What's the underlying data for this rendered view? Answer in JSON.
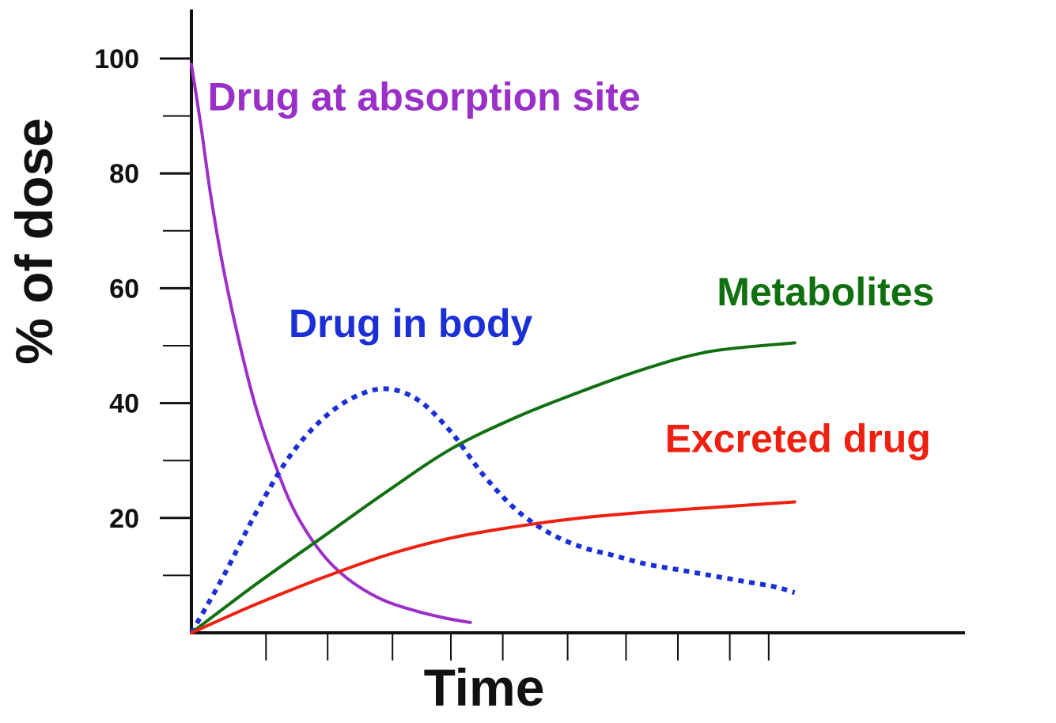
{
  "chart_data": {
    "type": "line",
    "xlabel": "Time",
    "ylabel": "% of dose",
    "xlim": [
      0,
      12
    ],
    "ylim": [
      0,
      100
    ],
    "y_ticks": [
      0,
      10,
      20,
      30,
      40,
      50,
      60,
      70,
      80,
      90,
      100
    ],
    "y_tick_labels": [
      {
        "value": 20,
        "label": "20"
      },
      {
        "value": 40,
        "label": "40"
      },
      {
        "value": 60,
        "label": "60"
      },
      {
        "value": 80,
        "label": "80"
      },
      {
        "value": 100,
        "label": "100"
      }
    ],
    "x_ticks": [
      1.15,
      2.1,
      3.1,
      4.0,
      4.8,
      5.8,
      6.7,
      7.5,
      8.3,
      8.9
    ],
    "grid": false,
    "legend": "labels placed next to each curve",
    "series": [
      {
        "name": "Drug at absorption site",
        "color": "#9b30c8",
        "style": "solid",
        "label_anchor": {
          "x": 0.25,
          "y": 91
        },
        "x": [
          0,
          0.15,
          0.3,
          0.5,
          0.75,
          1.0,
          1.3,
          1.6,
          2.0,
          2.4,
          2.9,
          3.4,
          3.9,
          4.3
        ],
        "y": [
          99,
          88,
          76,
          63,
          50,
          39,
          29,
          21,
          14,
          9.5,
          6,
          4,
          2.6,
          1.8
        ]
      },
      {
        "name": "Drug in body",
        "color": "#1a2fd6",
        "style": "dotted",
        "label_anchor": {
          "x": 1.5,
          "y": 51.5
        },
        "x": [
          0,
          0.5,
          1.0,
          1.5,
          2.0,
          2.5,
          3.0,
          3.5,
          4.0,
          4.5,
          5.0,
          5.5,
          6.0,
          6.5,
          7.0,
          7.5,
          8.0,
          8.5,
          9.0,
          9.3
        ],
        "y": [
          0,
          10,
          21,
          30.5,
          37,
          41,
          42.5,
          40.5,
          35,
          27.5,
          21.5,
          17.5,
          15,
          13.5,
          12,
          11,
          10,
          9,
          8,
          7
        ]
      },
      {
        "name": "Metabolites",
        "color": "#107010",
        "style": "solid",
        "label_anchor": {
          "x": 8.1,
          "y": 57
        },
        "x": [
          0,
          1.0,
          2.0,
          3.0,
          4.0,
          5.0,
          6.0,
          7.0,
          8.0,
          9.3
        ],
        "y": [
          0,
          8.5,
          16.5,
          24.5,
          32,
          37.5,
          42,
          46,
          49,
          50.5
        ]
      },
      {
        "name": "Excreted drug",
        "color": "#ee2010",
        "style": "solid",
        "label_anchor": {
          "x": 7.3,
          "y": 31.5
        },
        "x": [
          0,
          1.0,
          2.0,
          3.0,
          4.0,
          5.0,
          6.0,
          7.0,
          8.0,
          9.3
        ],
        "y": [
          0,
          5,
          9.5,
          13.5,
          16.5,
          18.5,
          20,
          21,
          21.8,
          22.8
        ]
      }
    ]
  }
}
